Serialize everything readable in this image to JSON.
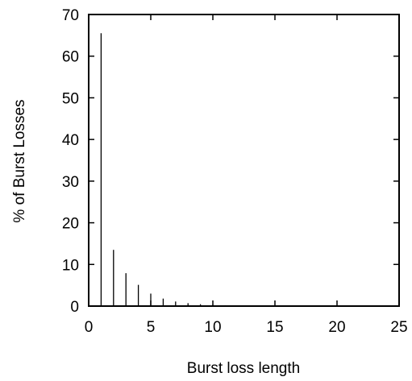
{
  "chart_data": {
    "type": "bar",
    "title": "",
    "xlabel": "Burst loss length",
    "ylabel": "% of Burst Losses",
    "xlim": [
      0,
      25
    ],
    "ylim": [
      0,
      70
    ],
    "xticks": [
      0,
      5,
      10,
      15,
      20,
      25
    ],
    "yticks": [
      0,
      10,
      20,
      30,
      40,
      50,
      60,
      70
    ],
    "grid": false,
    "legend": "none",
    "color": "#000000",
    "x": [
      1,
      2,
      3,
      4,
      5,
      6,
      7,
      8,
      9,
      10,
      11,
      12,
      13,
      14,
      15,
      16,
      17,
      18,
      19,
      20
    ],
    "values": [
      65.5,
      13.5,
      7.9,
      5.1,
      3.0,
      1.8,
      1.1,
      0.7,
      0.45,
      0.3,
      0.2,
      0.15,
      0.12,
      0.1,
      0.08,
      0.06,
      0.05,
      0.04,
      0.03,
      0.02
    ]
  }
}
